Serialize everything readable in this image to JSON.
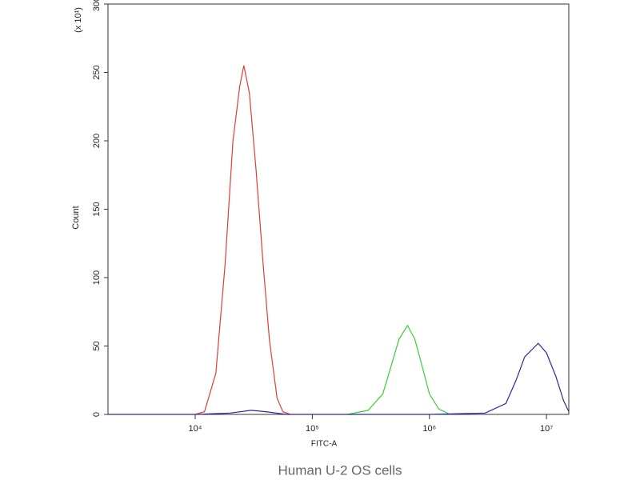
{
  "chart_data": {
    "type": "line",
    "xscale": "log",
    "ylabel": "Count",
    "ylabel_note": "(x 10¹)",
    "xlabel": "FITC-A",
    "caption": "Human U-2 OS cells",
    "xlim": [
      1800,
      15500000
    ],
    "ylim": [
      0,
      300
    ],
    "xticks": [
      {
        "value": 10000,
        "label": "10⁴"
      },
      {
        "value": 100000,
        "label": "10⁵"
      },
      {
        "value": 1000000,
        "label": "10⁶"
      },
      {
        "value": 10000000,
        "label": "10⁷"
      }
    ],
    "yticks": [
      0,
      50,
      100,
      150,
      200,
      250,
      300
    ],
    "series": [
      {
        "color": "#e03c3c",
        "x": [
          10000,
          12000,
          15000,
          18000,
          21000,
          24000,
          26000,
          29000,
          33000,
          38000,
          43000,
          50000,
          56000,
          65000
        ],
        "values": [
          0,
          2,
          30,
          110,
          200,
          240,
          255,
          235,
          180,
          110,
          55,
          12,
          2,
          0
        ]
      },
      {
        "color": "#3ccc3c",
        "x": [
          200000,
          300000,
          400000,
          470000,
          550000,
          650000,
          750000,
          850000,
          1000000,
          1200000,
          1500000
        ],
        "values": [
          0,
          3,
          15,
          35,
          55,
          65,
          55,
          38,
          15,
          4,
          0
        ]
      },
      {
        "color": "#2a2a9a",
        "x": [
          1800,
          10000,
          20000,
          30000,
          40000,
          60000,
          1000000,
          3000000,
          4500000,
          5500000,
          6500000,
          8500000,
          10000000,
          12000000,
          14000000,
          15500000
        ],
        "values": [
          0,
          0,
          1,
          3,
          2,
          0,
          0,
          1,
          8,
          25,
          42,
          52,
          45,
          28,
          10,
          2
        ]
      }
    ]
  }
}
